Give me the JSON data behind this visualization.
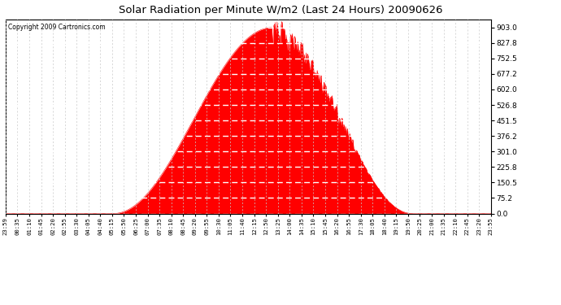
{
  "title": "Solar Radiation per Minute W/m2 (Last 24 Hours) 20090626",
  "copyright": "Copyright 2009 Cartronics.com",
  "fill_color": "#FF0000",
  "line_color": "#FF0000",
  "dashed_line_color": "#FF0000",
  "background_color": "#FFFFFF",
  "grid_color": "#C8C8C8",
  "plot_bg_color": "#FFFFFF",
  "yticks": [
    0.0,
    75.2,
    150.5,
    225.8,
    301.0,
    376.2,
    451.5,
    526.8,
    602.0,
    677.2,
    752.5,
    827.8,
    903.0
  ],
  "ymax": 940,
  "sunrise_index": 320,
  "sunset_index": 1205,
  "peak_index": 790,
  "peak_value": 903.0,
  "xtick_labels": [
    "23:59",
    "00:35",
    "01:10",
    "01:45",
    "02:20",
    "02:55",
    "03:30",
    "04:05",
    "04:40",
    "05:15",
    "05:50",
    "06:25",
    "07:00",
    "07:35",
    "08:10",
    "08:45",
    "09:20",
    "09:55",
    "10:30",
    "11:05",
    "11:40",
    "12:15",
    "12:50",
    "13:25",
    "14:00",
    "14:35",
    "15:10",
    "15:45",
    "16:20",
    "16:55",
    "17:30",
    "18:05",
    "18:40",
    "19:15",
    "19:50",
    "20:25",
    "21:00",
    "21:35",
    "22:10",
    "22:45",
    "23:20",
    "23:55"
  ]
}
